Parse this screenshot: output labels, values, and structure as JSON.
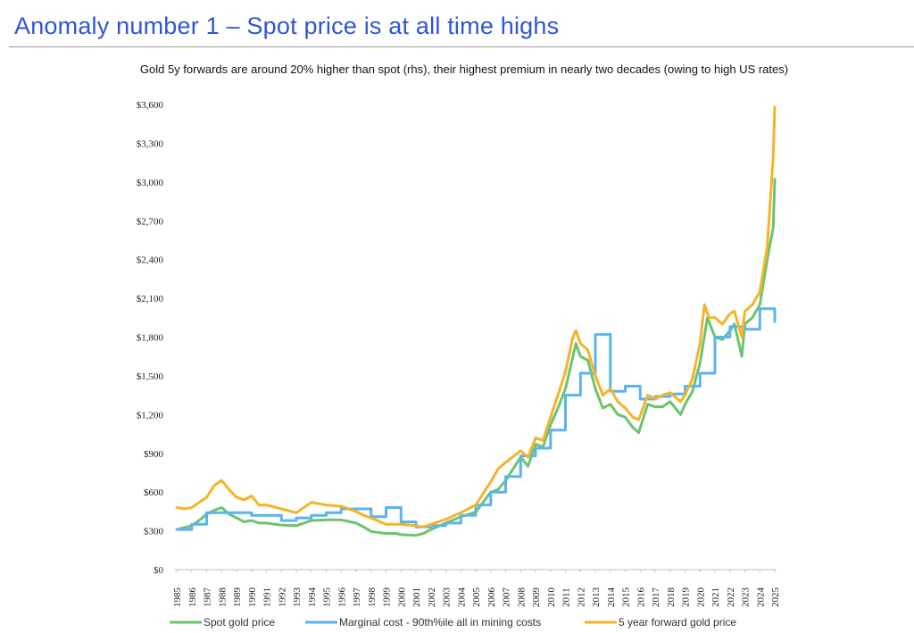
{
  "header": {
    "title": "Anomaly number 1 – Spot price is at all time highs"
  },
  "chart_data": {
    "type": "line",
    "title": "Gold 5y forwards are around 20% higher than spot (rhs), their highest premium in nearly two decades (owing to high US rates)",
    "xlabel": "",
    "ylabel": "",
    "ylim": [
      0,
      3600
    ],
    "xlim": [
      1985,
      2025
    ],
    "yticks": [
      0,
      300,
      600,
      900,
      1200,
      1500,
      1800,
      2100,
      2400,
      2700,
      3000,
      3300,
      3600
    ],
    "ytick_labels": [
      "$0",
      "$300",
      "$600",
      "$900",
      "$1,200",
      "$1,500",
      "$1,800",
      "$2,100",
      "$2,400",
      "$2,700",
      "$3,000",
      "$3,300",
      "$3,600"
    ],
    "xtick_labels": [
      "1985",
      "1986",
      "1987",
      "1988",
      "1989",
      "1990",
      "1991",
      "1992",
      "1993",
      "1994",
      "1995",
      "1996",
      "1997",
      "1998",
      "1999",
      "2000",
      "2001",
      "2002",
      "2003",
      "2004",
      "2005",
      "2006",
      "2007",
      "2008",
      "2009",
      "2010",
      "2011",
      "2012",
      "2013",
      "2014",
      "2015",
      "2016",
      "2017",
      "2018",
      "2019",
      "2020",
      "2021",
      "2022",
      "2023",
      "2024",
      "2025"
    ],
    "grid": false,
    "legend_position": "bottom",
    "series": [
      {
        "name": "Spot gold price",
        "color": "#6cc46c",
        "x": [
          1985,
          1986,
          1986.5,
          1987,
          1987.5,
          1988,
          1988.5,
          1989,
          1989.5,
          1990,
          1990.5,
          1991,
          1992,
          1993,
          1993.5,
          1994,
          1995,
          1996,
          1997,
          1997.5,
          1998,
          1999,
          1999.7,
          2000,
          2001,
          2001.5,
          2002,
          2003,
          2004,
          2005,
          2006,
          2006.5,
          2007,
          2008,
          2008.5,
          2009,
          2009.5,
          2010,
          2010.5,
          2011,
          2011.5,
          2011.7,
          2012,
          2012.5,
          2013,
          2013.5,
          2014,
          2014.5,
          2015,
          2015.5,
          2015.9,
          2016.5,
          2017,
          2017.5,
          2018,
          2018.7,
          2019,
          2019.5,
          2020,
          2020.5,
          2021,
          2021.5,
          2022,
          2022.3,
          2022.8,
          2023,
          2023.5,
          2024,
          2024.5,
          2024.9,
          2025
        ],
        "y": [
          310,
          340,
          380,
          430,
          460,
          480,
          430,
          400,
          370,
          380,
          360,
          360,
          345,
          340,
          360,
          380,
          385,
          385,
          360,
          330,
          295,
          280,
          280,
          270,
          265,
          280,
          310,
          360,
          410,
          445,
          600,
          620,
          690,
          870,
          800,
          970,
          950,
          1120,
          1250,
          1400,
          1650,
          1750,
          1650,
          1620,
          1400,
          1250,
          1280,
          1200,
          1180,
          1100,
          1060,
          1280,
          1260,
          1260,
          1300,
          1200,
          1280,
          1380,
          1600,
          1950,
          1800,
          1780,
          1850,
          1900,
          1650,
          1900,
          1950,
          2050,
          2400,
          2650,
          3020
        ]
      },
      {
        "name": "Marginal cost - 90th%ile all in mining costs",
        "color": "#5bb4f0",
        "x": [
          1985,
          1986,
          1987,
          1988,
          1989,
          1990,
          1991,
          1992,
          1993,
          1994,
          1995,
          1996,
          1997,
          1998,
          1999,
          2000,
          2001,
          2002,
          2003,
          2004,
          2005,
          2006,
          2007,
          2008,
          2009,
          2010,
          2011,
          2012,
          2013,
          2014,
          2015,
          2016,
          2017,
          2018,
          2019,
          2020,
          2021,
          2022,
          2023,
          2024,
          2025
        ],
        "y": [
          310,
          350,
          440,
          440,
          440,
          420,
          420,
          380,
          400,
          420,
          440,
          470,
          470,
          410,
          480,
          370,
          330,
          340,
          360,
          420,
          500,
          600,
          720,
          880,
          940,
          1080,
          1350,
          1520,
          1820,
          1380,
          1420,
          1320,
          1340,
          1360,
          1420,
          1520,
          1800,
          1880,
          1860,
          2020,
          1920
        ]
      },
      {
        "name": "5 year forward gold price",
        "color": "#f5b32a",
        "x": [
          1985,
          1985.5,
          1986,
          1987,
          1987.5,
          1988,
          1988.5,
          1989,
          1989.5,
          1990,
          1990.5,
          1991,
          1992,
          1993,
          1993.5,
          1994,
          1994.5,
          1995,
          1996,
          1997,
          1997.5,
          1998,
          1999,
          1999.7,
          2000,
          2001,
          2001.5,
          2002,
          2003,
          2004,
          2005,
          2006,
          2006.5,
          2007,
          2008,
          2008.5,
          2009,
          2009.5,
          2010,
          2010.5,
          2011,
          2011.5,
          2011.7,
          2012,
          2012.5,
          2013,
          2013.5,
          2014,
          2014.5,
          2015,
          2015.5,
          2015.9,
          2016.5,
          2017,
          2017.5,
          2018,
          2018.7,
          2019,
          2019.5,
          2020,
          2020.3,
          2020.6,
          2021,
          2021.5,
          2022,
          2022.3,
          2022.8,
          2023,
          2023.5,
          2024,
          2024.5,
          2024.9,
          2025
        ],
        "y": [
          480,
          470,
          480,
          560,
          650,
          690,
          620,
          560,
          540,
          570,
          500,
          500,
          470,
          440,
          480,
          520,
          510,
          500,
          490,
          450,
          420,
          400,
          350,
          350,
          350,
          340,
          330,
          350,
          390,
          440,
          500,
          680,
          780,
          830,
          920,
          870,
          1020,
          1000,
          1180,
          1350,
          1530,
          1800,
          1850,
          1750,
          1700,
          1500,
          1350,
          1400,
          1300,
          1250,
          1180,
          1160,
          1350,
          1320,
          1350,
          1370,
          1300,
          1350,
          1480,
          1750,
          2050,
          1950,
          1950,
          1900,
          1980,
          2000,
          1800,
          2000,
          2050,
          2150,
          2500,
          3200,
          3580
        ]
      }
    ]
  }
}
